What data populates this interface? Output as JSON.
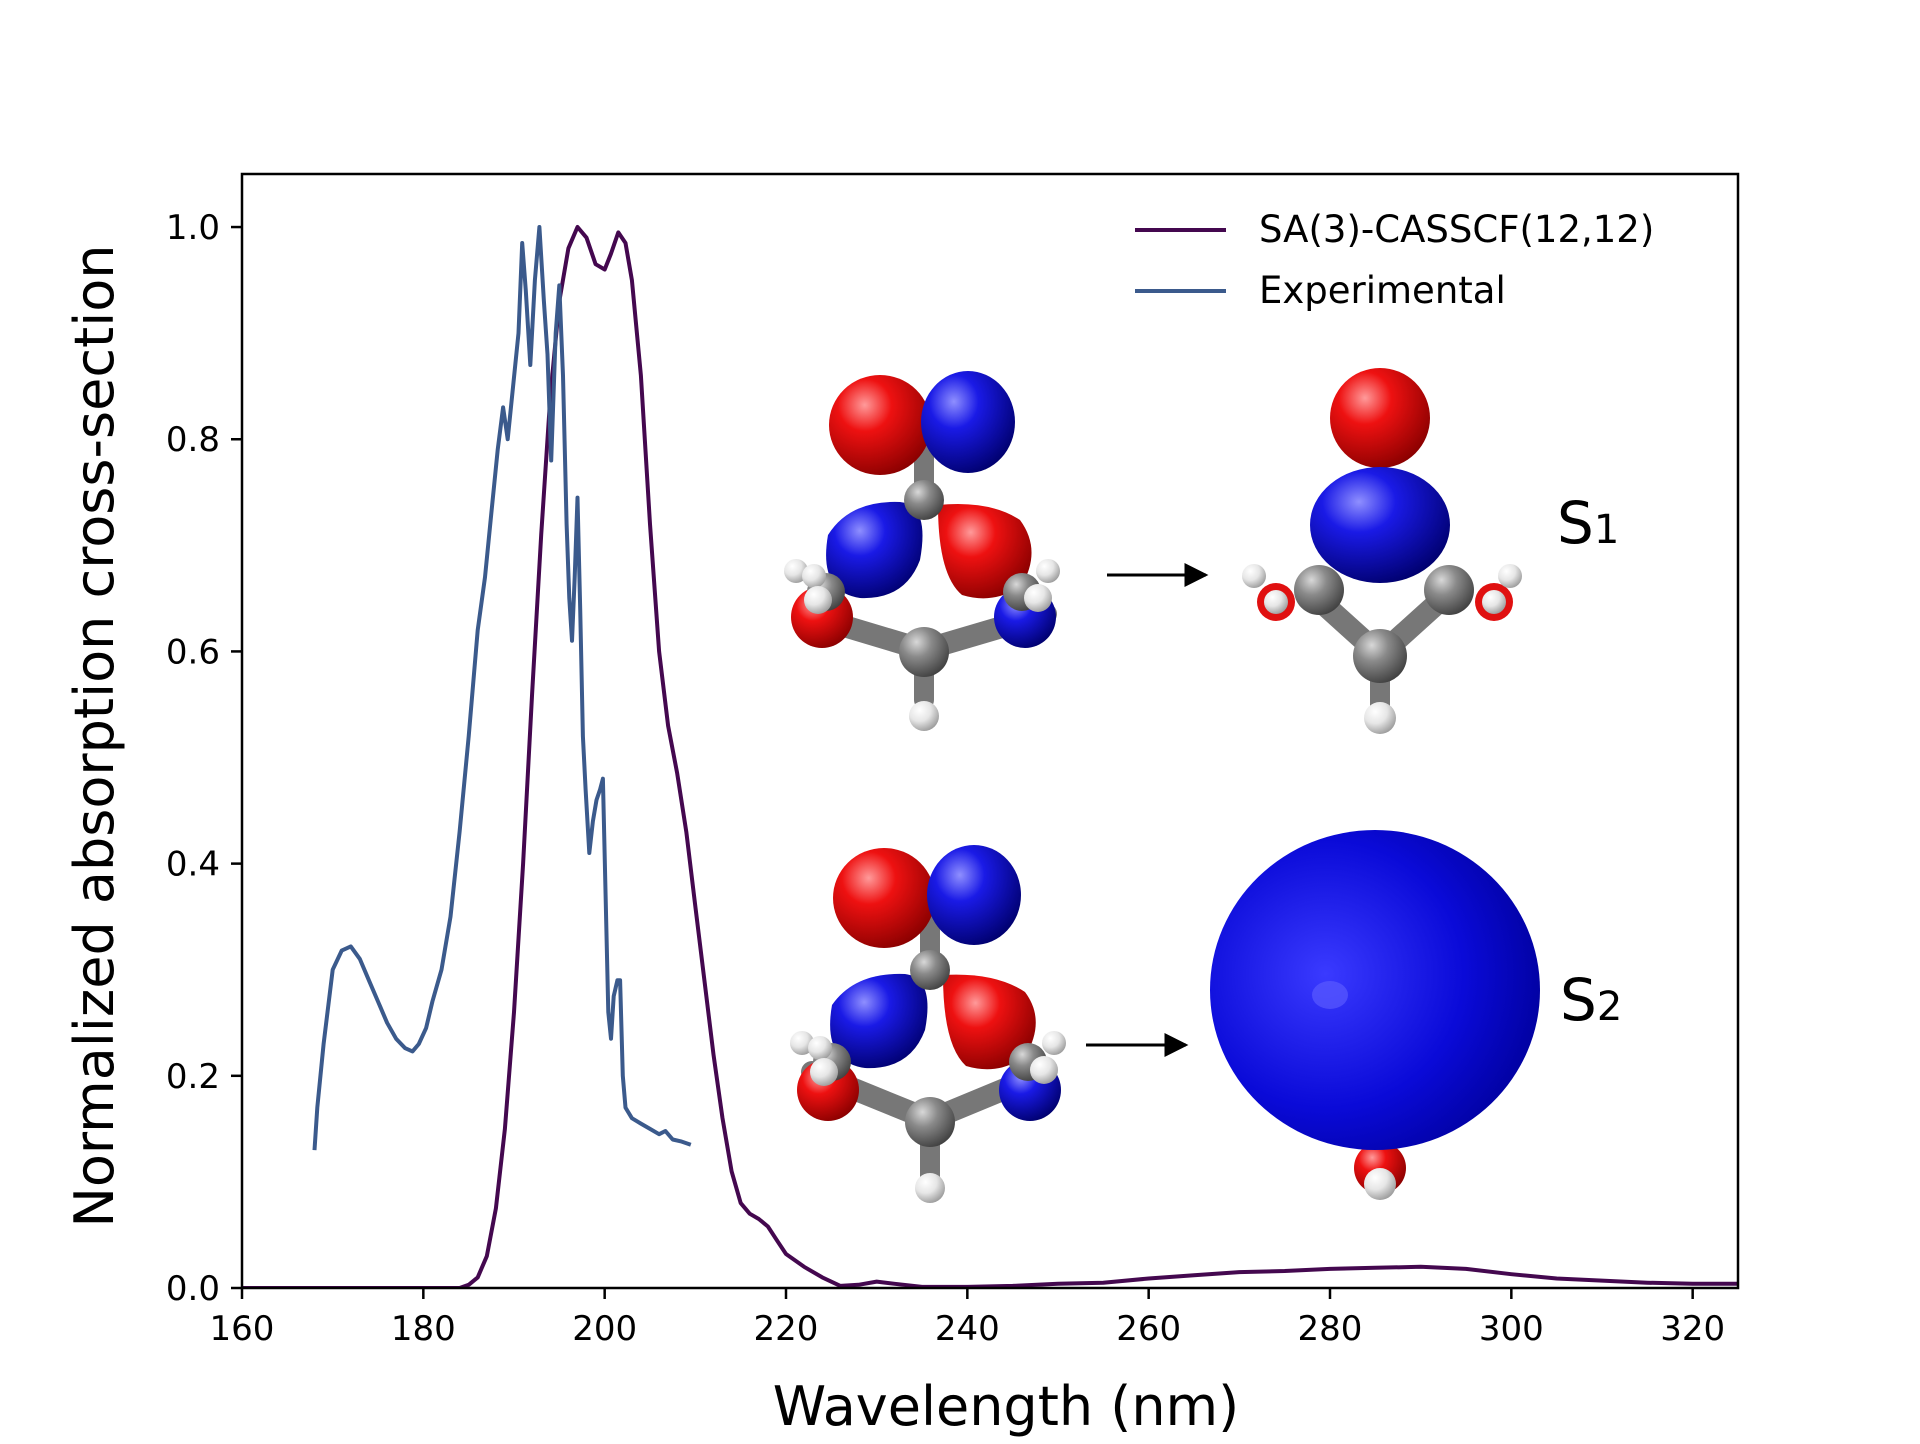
{
  "chart_data": {
    "type": "line",
    "xlabel": "Wavelength (nm)",
    "ylabel": "Normalized absorption cross-section",
    "xlim": [
      160,
      325
    ],
    "ylim": [
      0,
      1.05
    ],
    "xticks": [
      160,
      180,
      200,
      220,
      240,
      260,
      280,
      300,
      320
    ],
    "yticks": [
      0.0,
      0.2,
      0.4,
      0.6,
      0.8,
      1.0
    ],
    "xtick_labels": [
      "160",
      "180",
      "200",
      "220",
      "240",
      "260",
      "280",
      "300",
      "320"
    ],
    "ytick_labels": [
      "0.0",
      "0.2",
      "0.4",
      "0.6",
      "0.8",
      "1.0"
    ],
    "grid": false,
    "legend_position": "top-right",
    "series": [
      {
        "name": "SA(3)-CASSCF(12,12)",
        "color": "#44084f",
        "points": [
          [
            160,
            0.0
          ],
          [
            180,
            0.0
          ],
          [
            184,
            0.0
          ],
          [
            185,
            0.003
          ],
          [
            186,
            0.01
          ],
          [
            187,
            0.03
          ],
          [
            188,
            0.075
          ],
          [
            189,
            0.15
          ],
          [
            190,
            0.26
          ],
          [
            191,
            0.4
          ],
          [
            192,
            0.56
          ],
          [
            193,
            0.71
          ],
          [
            194,
            0.84
          ],
          [
            195,
            0.93
          ],
          [
            196,
            0.98
          ],
          [
            197,
            1.0
          ],
          [
            198,
            0.99
          ],
          [
            199,
            0.965
          ],
          [
            200,
            0.96
          ],
          [
            200.7,
            0.975
          ],
          [
            201.5,
            0.995
          ],
          [
            202.3,
            0.985
          ],
          [
            203,
            0.95
          ],
          [
            204,
            0.86
          ],
          [
            205,
            0.72
          ],
          [
            206,
            0.6
          ],
          [
            207,
            0.53
          ],
          [
            208,
            0.485
          ],
          [
            209,
            0.43
          ],
          [
            210,
            0.36
          ],
          [
            211,
            0.29
          ],
          [
            212,
            0.22
          ],
          [
            213,
            0.16
          ],
          [
            214,
            0.11
          ],
          [
            215,
            0.08
          ],
          [
            216,
            0.07
          ],
          [
            217,
            0.065
          ],
          [
            218,
            0.058
          ],
          [
            219,
            0.045
          ],
          [
            220,
            0.032
          ],
          [
            222,
            0.02
          ],
          [
            224,
            0.01
          ],
          [
            226,
            0.002
          ],
          [
            228,
            0.003
          ],
          [
            230,
            0.006
          ],
          [
            232,
            0.004
          ],
          [
            235,
            0.001
          ],
          [
            240,
            0.001
          ],
          [
            245,
            0.002
          ],
          [
            250,
            0.004
          ],
          [
            255,
            0.005
          ],
          [
            260,
            0.009
          ],
          [
            265,
            0.012
          ],
          [
            270,
            0.015
          ],
          [
            275,
            0.016
          ],
          [
            280,
            0.018
          ],
          [
            285,
            0.019
          ],
          [
            290,
            0.02
          ],
          [
            295,
            0.018
          ],
          [
            300,
            0.013
          ],
          [
            305,
            0.009
          ],
          [
            310,
            0.007
          ],
          [
            315,
            0.005
          ],
          [
            320,
            0.004
          ],
          [
            325,
            0.004
          ]
        ]
      },
      {
        "name": "Experimental",
        "color": "#3b5a8c",
        "points": [
          [
            168,
            0.13
          ],
          [
            168.3,
            0.17
          ],
          [
            169,
            0.23
          ],
          [
            170,
            0.3
          ],
          [
            171,
            0.318
          ],
          [
            172,
            0.322
          ],
          [
            173,
            0.31
          ],
          [
            174,
            0.29
          ],
          [
            175,
            0.27
          ],
          [
            176,
            0.25
          ],
          [
            177,
            0.235
          ],
          [
            178,
            0.226
          ],
          [
            178.8,
            0.223
          ],
          [
            179.5,
            0.23
          ],
          [
            180.3,
            0.245
          ],
          [
            181,
            0.27
          ],
          [
            182,
            0.3
          ],
          [
            183,
            0.35
          ],
          [
            184,
            0.43
          ],
          [
            185,
            0.52
          ],
          [
            186,
            0.62
          ],
          [
            186.8,
            0.67
          ],
          [
            187.5,
            0.73
          ],
          [
            188.2,
            0.79
          ],
          [
            188.8,
            0.83
          ],
          [
            189.3,
            0.8
          ],
          [
            189.9,
            0.85
          ],
          [
            190.5,
            0.9
          ],
          [
            190.9,
            0.985
          ],
          [
            191.3,
            0.94
          ],
          [
            191.8,
            0.87
          ],
          [
            192.3,
            0.95
          ],
          [
            192.8,
            1.0
          ],
          [
            193.3,
            0.93
          ],
          [
            193.7,
            0.88
          ],
          [
            194.1,
            0.78
          ],
          [
            194.6,
            0.9
          ],
          [
            195.0,
            0.945
          ],
          [
            195.4,
            0.86
          ],
          [
            195.8,
            0.72
          ],
          [
            196.1,
            0.65
          ],
          [
            196.4,
            0.61
          ],
          [
            196.7,
            0.67
          ],
          [
            197.0,
            0.745
          ],
          [
            197.3,
            0.64
          ],
          [
            197.6,
            0.52
          ],
          [
            197.9,
            0.47
          ],
          [
            198.3,
            0.41
          ],
          [
            198.7,
            0.44
          ],
          [
            199.1,
            0.46
          ],
          [
            199.5,
            0.47
          ],
          [
            199.8,
            0.48
          ],
          [
            200.1,
            0.37
          ],
          [
            200.4,
            0.26
          ],
          [
            200.7,
            0.235
          ],
          [
            201.0,
            0.275
          ],
          [
            201.4,
            0.29
          ],
          [
            201.7,
            0.29
          ],
          [
            202.0,
            0.2
          ],
          [
            202.3,
            0.17
          ],
          [
            203,
            0.16
          ],
          [
            204,
            0.155
          ],
          [
            205,
            0.15
          ],
          [
            206,
            0.145
          ],
          [
            206.7,
            0.148
          ],
          [
            207.5,
            0.14
          ],
          [
            208.5,
            0.138
          ],
          [
            209.5,
            0.135
          ]
        ]
      }
    ]
  },
  "annotations": {
    "s1_label_main": "S",
    "s1_label_sub": "1",
    "s2_label_main": "S",
    "s2_label_sub": "2"
  }
}
